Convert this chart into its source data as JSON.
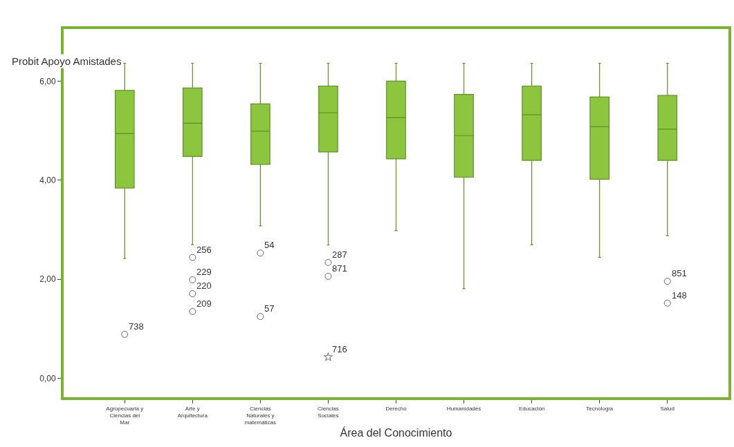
{
  "chart_data": {
    "type": "box",
    "xlabel": "Área del Conocimiento",
    "ylabel": "Probit Apoyo Amistades",
    "categories": [
      "Agropecuaria y Ciencias del Mar",
      "Arte y Arquitectura",
      "Ciencias Naturales y matemáticas",
      "Ciencias Sociales",
      "Derecho",
      "Humanidades",
      "Educación",
      "Tecnología",
      "Salud"
    ],
    "color": "#8cc63f",
    "boxes": [
      {
        "low": 2.42,
        "q1": 3.84,
        "median": 4.94,
        "q3": 5.81,
        "high": 6.36
      },
      {
        "low": 2.7,
        "q1": 4.48,
        "median": 5.15,
        "q3": 5.86,
        "high": 6.36
      },
      {
        "low": 3.08,
        "q1": 4.32,
        "median": 4.99,
        "q3": 5.54,
        "high": 6.36
      },
      {
        "low": 2.69,
        "q1": 4.57,
        "median": 5.36,
        "q3": 5.9,
        "high": 6.36
      },
      {
        "low": 2.98,
        "q1": 4.43,
        "median": 5.26,
        "q3": 6.0,
        "high": 6.36
      },
      {
        "low": 1.81,
        "q1": 4.06,
        "median": 4.9,
        "q3": 5.73,
        "high": 6.36
      },
      {
        "low": 2.7,
        "q1": 4.4,
        "median": 5.32,
        "q3": 5.9,
        "high": 6.36
      },
      {
        "low": 2.44,
        "q1": 4.02,
        "median": 5.08,
        "q3": 5.68,
        "high": 6.36
      },
      {
        "low": 2.88,
        "q1": 4.4,
        "median": 5.03,
        "q3": 5.71,
        "high": 6.36
      }
    ],
    "series": [
      {
        "type": "scatter",
        "marker": "circle",
        "color": "#666666",
        "x": [
          "Agropecuaria y Ciencias del Mar",
          "Arte y Arquitectura",
          "Arte y Arquitectura",
          "Arte y Arquitectura",
          "Arte y Arquitectura",
          "Ciencias Naturales y matemáticas",
          "Ciencias Naturales y matemáticas",
          "Ciencias Sociales",
          "Ciencias Sociales",
          "Salud",
          "Salud"
        ],
        "values": [
          0.89,
          2.44,
          1.99,
          1.71,
          1.35,
          2.53,
          1.25,
          2.34,
          2.06,
          1.96,
          1.52
        ]
      },
      {
        "type": "scatter",
        "marker": "star",
        "color": "#666666",
        "x": [
          "Ciencias Sociales"
        ],
        "values": [
          0.43
        ]
      }
    ],
    "ylim": [
      -0.38,
      7.05
    ],
    "yticks": [
      {
        "value": 0,
        "label": "0,00"
      },
      {
        "value": 2,
        "label": "2,00"
      },
      {
        "value": 4,
        "label": "4,00"
      },
      {
        "value": 6,
        "label": "6,00"
      }
    ],
    "annotations": [
      {
        "text": "738",
        "x": "Agropecuaria y Ciencias del Mar",
        "y": 0.89
      },
      {
        "text": "256",
        "x": "Arte y Arquitectura",
        "y": 2.44
      },
      {
        "text": "229",
        "x": "Arte y Arquitectura",
        "y": 1.99
      },
      {
        "text": "220",
        "x": "Arte y Arquitectura",
        "y": 1.71
      },
      {
        "text": "209",
        "x": "Arte y Arquitectura",
        "y": 1.35
      },
      {
        "text": "54",
        "x": "Ciencias Naturales y matemáticas",
        "y": 2.53
      },
      {
        "text": "57",
        "x": "Ciencias Naturales y matemáticas",
        "y": 1.25
      },
      {
        "text": "287",
        "x": "Ciencias Sociales",
        "y": 2.34
      },
      {
        "text": "871",
        "x": "Ciencias Sociales",
        "y": 2.06
      },
      {
        "text": "716",
        "x": "Ciencias Sociales",
        "y": 0.43
      },
      {
        "text": "851",
        "x": "Salud",
        "y": 1.96
      },
      {
        "text": "148",
        "x": "Salud",
        "y": 1.52
      }
    ]
  }
}
